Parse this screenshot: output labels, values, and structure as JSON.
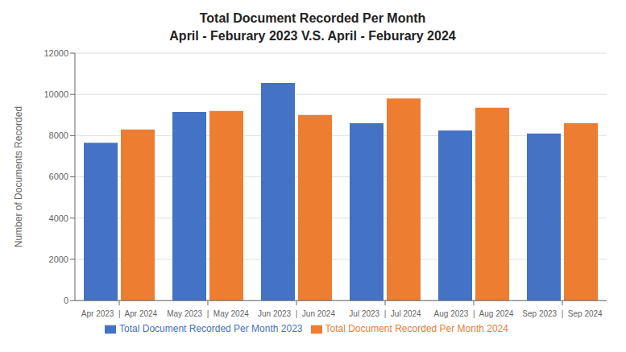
{
  "chart_data": {
    "type": "bar",
    "title": "Total Document Recorded Per Month",
    "subtitle": "April - Feburary 2023 V.S. April - Feburary 2024",
    "ylabel": "Number of Documents Recorded",
    "categories": [
      "Apr 2023  |  Apr 2024",
      "May 2023  |  May 2024",
      "Jun 2023  |  Jun 2024",
      "Jul 2023  |  Jul 2024",
      "Aug 2023  |  Aug 2024",
      "Sep 2023  |  Sep 2024"
    ],
    "series": [
      {
        "name": "Total Document Recorded Per Month 2023",
        "color": "#4472C4",
        "values": [
          7650,
          9150,
          10550,
          8600,
          8250,
          8100
        ]
      },
      {
        "name": "Total Document Recorded Per Month 2024",
        "color": "#ED7D31",
        "values": [
          8300,
          9200,
          9000,
          9800,
          9350,
          8600
        ]
      }
    ],
    "ylim": [
      0,
      12000
    ],
    "yticks": [
      0,
      2000,
      4000,
      6000,
      8000,
      10000,
      12000
    ],
    "grid": true,
    "legend": "bottom"
  }
}
